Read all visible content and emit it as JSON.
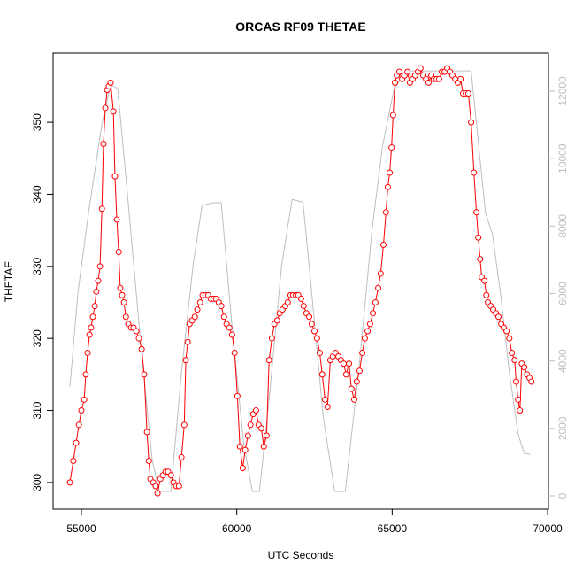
{
  "chart_data": {
    "type": "line",
    "title": "ORCAS RF09 THETAE",
    "x_label": "UTC Seconds",
    "y_label": "THETAE",
    "xlim": [
      54089,
      70028
    ],
    "xticks": [
      55000,
      60000,
      65000,
      70000
    ],
    "ylim": [
      296.3,
      359.6
    ],
    "yticks": [
      300,
      310,
      320,
      330,
      340,
      350
    ],
    "y2lim": [
      -394,
      13129
    ],
    "y2ticks": [
      0,
      2000,
      4000,
      6000,
      8000,
      10000,
      12000
    ],
    "series": [
      {
        "color": "#ff0000",
        "marker": "circle",
        "x": [
          54630,
          54740,
          54830,
          54920,
          55000,
          55090,
          55140,
          55200,
          55260,
          55310,
          55370,
          55430,
          55480,
          55540,
          55600,
          55660,
          55710,
          55770,
          55830,
          55880,
          55940,
          56030,
          56080,
          56140,
          56200,
          56250,
          56310,
          56370,
          56430,
          56510,
          56600,
          56680,
          56770,
          56850,
          56940,
          57020,
          57110,
          57170,
          57220,
          57310,
          57390,
          57450,
          57540,
          57620,
          57710,
          57790,
          57880,
          57960,
          58050,
          58140,
          58220,
          58310,
          58360,
          58420,
          58480,
          58560,
          58650,
          58730,
          58820,
          58900,
          58990,
          59080,
          59160,
          59250,
          59330,
          59420,
          59500,
          59590,
          59670,
          59760,
          59850,
          59930,
          60020,
          60100,
          60190,
          60270,
          60360,
          60440,
          60530,
          60620,
          60700,
          60790,
          60870,
          60960,
          61040,
          61130,
          61210,
          61300,
          61380,
          61470,
          61560,
          61640,
          61730,
          61810,
          61900,
          61980,
          62070,
          62150,
          62240,
          62330,
          62410,
          62500,
          62580,
          62670,
          62750,
          62840,
          62920,
          63010,
          63090,
          63180,
          63270,
          63350,
          63440,
          63520,
          63610,
          63690,
          63780,
          63860,
          63950,
          64040,
          64120,
          64210,
          64290,
          64380,
          64460,
          64550,
          64630,
          64720,
          64800,
          64860,
          64920,
          64980,
          65030,
          65090,
          65150,
          65230,
          65320,
          65400,
          65490,
          65570,
          65660,
          65740,
          65830,
          65910,
          66000,
          66090,
          66170,
          66260,
          66340,
          66430,
          66510,
          66600,
          66690,
          66770,
          66860,
          66940,
          67030,
          67110,
          67200,
          67280,
          67370,
          67450,
          67540,
          67630,
          67710,
          67770,
          67830,
          67880,
          67970,
          68030,
          68080,
          68170,
          68250,
          68340,
          68420,
          68510,
          68590,
          68680,
          68770,
          68850,
          68940,
          68990,
          69050,
          69110,
          69170,
          69250,
          69340,
          69420,
          69480
        ],
        "values": [
          300,
          303,
          305.5,
          308,
          310,
          311.5,
          315,
          318,
          320.5,
          321.5,
          323,
          324.5,
          326.5,
          328,
          330,
          338,
          347,
          352,
          354.5,
          355,
          355.5,
          351.5,
          342.5,
          336.5,
          332,
          327,
          326,
          325,
          323,
          322,
          321.5,
          321.5,
          321,
          320,
          318.5,
          315,
          307,
          303,
          300.5,
          300,
          299.5,
          298.5,
          300.5,
          301,
          301.5,
          301.5,
          301,
          300,
          299.5,
          299.5,
          303.5,
          308,
          317,
          319.5,
          322,
          322.5,
          323,
          324,
          325,
          326,
          326,
          326,
          325.5,
          325.5,
          325.5,
          325,
          324.5,
          323,
          322,
          321.5,
          320.5,
          318,
          312,
          305,
          302,
          304.5,
          306.5,
          308,
          309.5,
          310,
          308,
          307.5,
          305,
          306.5,
          317,
          320,
          322,
          322.5,
          323.5,
          324,
          324.5,
          325,
          326,
          326,
          326,
          326,
          325.5,
          324.5,
          323.5,
          323,
          322,
          321,
          320,
          318,
          315,
          311.5,
          310.5,
          317,
          317.5,
          318,
          317.5,
          317,
          316.5,
          315,
          316.5,
          313,
          311.5,
          314,
          315.5,
          318,
          320,
          321,
          322,
          323.5,
          325,
          327,
          329,
          333,
          337.5,
          341,
          343,
          346.5,
          351,
          355.5,
          356.5,
          357,
          356,
          356.5,
          357,
          355.5,
          356,
          356.5,
          357,
          357.5,
          356.5,
          356,
          355.5,
          356.5,
          356,
          356,
          356,
          357,
          357,
          357.5,
          357,
          356.5,
          356,
          355.5,
          356,
          354,
          354,
          354,
          350,
          343,
          337.5,
          334,
          331,
          328.5,
          328,
          326,
          325,
          324.5,
          324,
          323.5,
          323,
          322,
          321.5,
          321,
          320,
          318,
          317,
          314,
          311.5,
          310,
          316.5,
          316,
          315,
          314.5,
          314
        ]
      },
      {
        "color": "#bebebe",
        "axis": "y2",
        "x": [
          54630,
          54890,
          55230,
          55660,
          55940,
          56170,
          56510,
          56940,
          57280,
          57510,
          57880,
          58220,
          58590,
          58880,
          59220,
          59500,
          59850,
          60220,
          60500,
          60730,
          61070,
          61440,
          61780,
          62130,
          62410,
          62780,
          63150,
          63490,
          63920,
          64350,
          64690,
          65060,
          65490,
          66060,
          66630,
          67200,
          67540,
          67770,
          68000,
          68230,
          68480,
          68770,
          69050,
          69250,
          69450
        ],
        "values": [
          3230,
          6040,
          8400,
          11020,
          12200,
          12070,
          8660,
          4200,
          1050,
          130,
          130,
          3670,
          6820,
          8610,
          8690,
          8690,
          4990,
          1570,
          130,
          130,
          3150,
          6820,
          8790,
          8710,
          6040,
          2360,
          130,
          130,
          3670,
          7870,
          10370,
          12070,
          12600,
          12600,
          12600,
          12600,
          12600,
          10500,
          8400,
          7740,
          6040,
          3670,
          1840,
          1260,
          1230
        ]
      }
    ]
  }
}
